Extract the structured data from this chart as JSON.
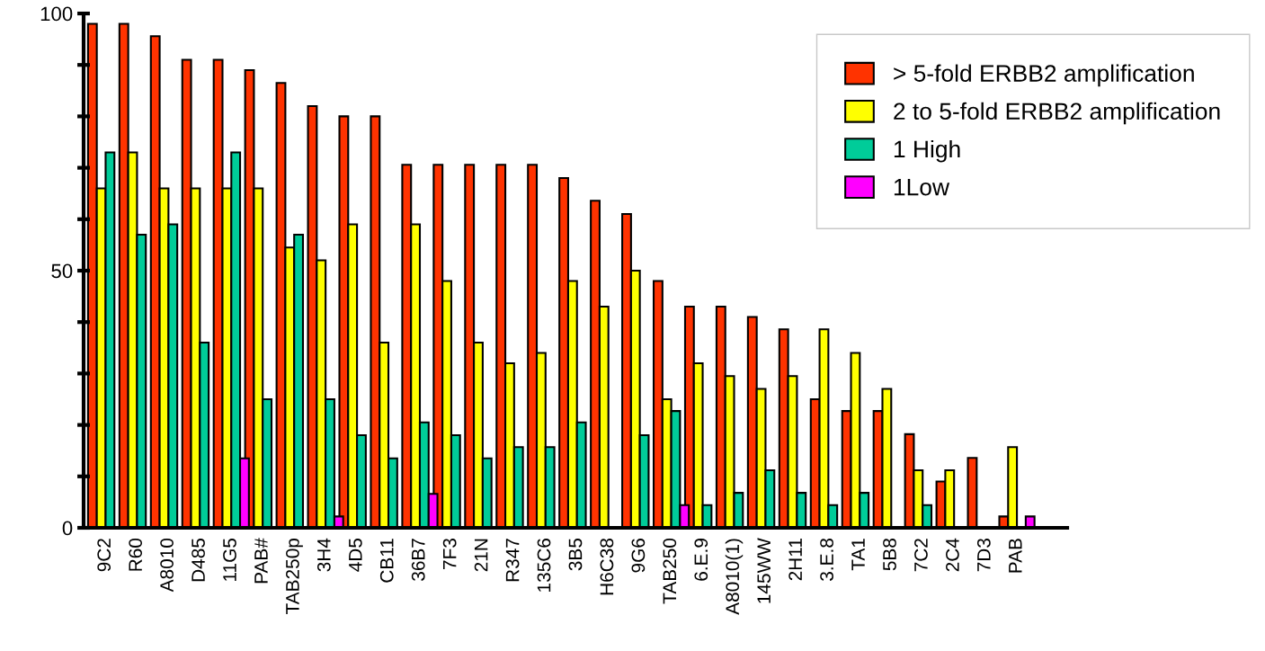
{
  "chart_data": {
    "type": "bar",
    "categories": [
      "9C2",
      "R60",
      "A8010",
      "D485",
      "11G5",
      "PAB#",
      "TAB250p",
      "3H4",
      "4D5",
      "CB11",
      "36B7",
      "7F3",
      "21N",
      "R347",
      "135C6",
      "3B5",
      "H6C38",
      "9G6",
      "TAB250",
      "6.E.9",
      "A8010(1)",
      "145WW",
      "2H11",
      "3.E.8",
      "TA1",
      "5B8",
      "7C2",
      "2C4",
      "7D3",
      "PAB"
    ],
    "series": [
      {
        "name": "> 5-fold ERBB2 amplification",
        "color": "#ff3300",
        "values": [
          98,
          98,
          95.6,
          91,
          91,
          89,
          86.5,
          82,
          80,
          80,
          70.6,
          70.6,
          70.6,
          70.6,
          70.6,
          68,
          63.6,
          61,
          48,
          43,
          43,
          41,
          38.6,
          25,
          22.7,
          22.7,
          18.2,
          9,
          13.6,
          2.2
        ]
      },
      {
        "name": "2 to 5-fold ERBB2 amplification",
        "color": "#ffff00",
        "values": [
          66,
          73,
          66,
          66,
          66,
          66,
          54.5,
          52,
          59,
          36,
          59,
          48,
          36,
          32,
          34,
          48,
          43,
          50,
          25,
          32,
          29.5,
          27,
          29.5,
          38.6,
          34,
          27,
          11.2,
          11.2,
          null,
          15.7
        ]
      },
      {
        "name": "1 High",
        "color": "#00cc99",
        "values": [
          73,
          57,
          59,
          36,
          73,
          25,
          57,
          25,
          18,
          13.5,
          20.5,
          18,
          13.5,
          15.7,
          15.7,
          20.5,
          null,
          18,
          22.7,
          4.4,
          6.8,
          11.2,
          6.8,
          4.4,
          6.8,
          null,
          4.4,
          null,
          null,
          null
        ]
      },
      {
        "name": "1Low",
        "color": "#ff00ff",
        "values": [
          null,
          null,
          null,
          null,
          13.5,
          null,
          null,
          2.2,
          null,
          null,
          6.6,
          null,
          null,
          null,
          null,
          null,
          null,
          null,
          4.4,
          null,
          null,
          null,
          null,
          null,
          null,
          null,
          null,
          null,
          null,
          2.2
        ]
      }
    ],
    "ylim": [
      0,
      100
    ],
    "yticks": [
      0,
      {
        "value": 10,
        "label": null
      },
      {
        "value": 20,
        "label": null
      },
      {
        "value": 30,
        "label": null
      },
      {
        "value": 40,
        "label": null
      },
      50,
      {
        "value": 60,
        "label": null
      },
      {
        "value": 70,
        "label": null
      },
      {
        "value": 80,
        "label": null
      },
      {
        "value": 90,
        "label": null
      },
      100
    ],
    "legend": "top right"
  }
}
